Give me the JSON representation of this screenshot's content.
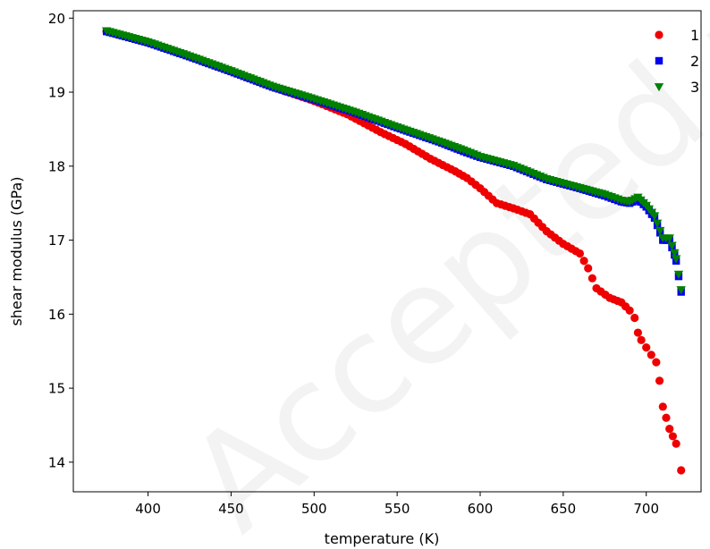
{
  "watermark": "Accepted manuscript",
  "chart_data": {
    "type": "scatter",
    "title": "",
    "xlabel": "temperature (K)",
    "ylabel": "shear modulus (GPa)",
    "xlim": [
      355,
      733
    ],
    "ylim": [
      13.6,
      20.1
    ],
    "xticks": [
      400,
      450,
      500,
      550,
      600,
      650,
      700
    ],
    "yticks": [
      14,
      15,
      16,
      17,
      18,
      19,
      20
    ],
    "grid": false,
    "legend_position": "top-right",
    "series": [
      {
        "name": "1",
        "marker": "circle",
        "color": "#ee0000",
        "points": [
          [
            375,
            19.82
          ],
          [
            400,
            19.67
          ],
          [
            425,
            19.48
          ],
          [
            450,
            19.28
          ],
          [
            475,
            19.07
          ],
          [
            500,
            18.88
          ],
          [
            520,
            18.7
          ],
          [
            540,
            18.46
          ],
          [
            555,
            18.3
          ],
          [
            570,
            18.1
          ],
          [
            585,
            17.93
          ],
          [
            592,
            17.84
          ],
          [
            600,
            17.7
          ],
          [
            610,
            17.5
          ],
          [
            620,
            17.43
          ],
          [
            630,
            17.35
          ],
          [
            640,
            17.12
          ],
          [
            650,
            16.95
          ],
          [
            660,
            16.82
          ],
          [
            665,
            16.62
          ],
          [
            670,
            16.35
          ],
          [
            678,
            16.22
          ],
          [
            685,
            16.16
          ],
          [
            690,
            16.05
          ],
          [
            693,
            15.95
          ],
          [
            695,
            15.75
          ],
          [
            697,
            15.65
          ],
          [
            700,
            15.55
          ],
          [
            703,
            15.45
          ],
          [
            706,
            15.35
          ],
          [
            708,
            15.1
          ],
          [
            710,
            14.75
          ],
          [
            712,
            14.6
          ],
          [
            714,
            14.45
          ],
          [
            716,
            14.35
          ],
          [
            718,
            14.25
          ],
          [
            721,
            13.89
          ]
        ]
      },
      {
        "name": "2",
        "marker": "square",
        "color": "#0000ee",
        "points": [
          [
            375,
            19.82
          ],
          [
            400,
            19.67
          ],
          [
            425,
            19.48
          ],
          [
            450,
            19.28
          ],
          [
            475,
            19.07
          ],
          [
            500,
            18.9
          ],
          [
            525,
            18.72
          ],
          [
            550,
            18.52
          ],
          [
            575,
            18.33
          ],
          [
            590,
            18.2
          ],
          [
            600,
            18.12
          ],
          [
            620,
            18.0
          ],
          [
            640,
            17.82
          ],
          [
            660,
            17.7
          ],
          [
            675,
            17.6
          ],
          [
            685,
            17.52
          ],
          [
            690,
            17.5
          ],
          [
            695,
            17.55
          ],
          [
            700,
            17.45
          ],
          [
            705,
            17.3
          ],
          [
            710,
            17.0
          ],
          [
            714,
            17.0
          ],
          [
            717,
            16.8
          ],
          [
            718,
            16.72
          ],
          [
            721,
            16.3
          ]
        ]
      },
      {
        "name": "3",
        "marker": "triangle",
        "color": "#008000",
        "points": [
          [
            375,
            19.83
          ],
          [
            400,
            19.68
          ],
          [
            425,
            19.49
          ],
          [
            450,
            19.29
          ],
          [
            475,
            19.08
          ],
          [
            500,
            18.91
          ],
          [
            525,
            18.73
          ],
          [
            550,
            18.53
          ],
          [
            575,
            18.34
          ],
          [
            590,
            18.22
          ],
          [
            600,
            18.13
          ],
          [
            620,
            18.01
          ],
          [
            640,
            17.83
          ],
          [
            660,
            17.71
          ],
          [
            675,
            17.62
          ],
          [
            685,
            17.54
          ],
          [
            690,
            17.52
          ],
          [
            695,
            17.58
          ],
          [
            700,
            17.47
          ],
          [
            705,
            17.33
          ],
          [
            710,
            17.03
          ],
          [
            714,
            17.03
          ],
          [
            717,
            16.83
          ],
          [
            718,
            16.75
          ],
          [
            721,
            16.33
          ]
        ]
      }
    ]
  }
}
